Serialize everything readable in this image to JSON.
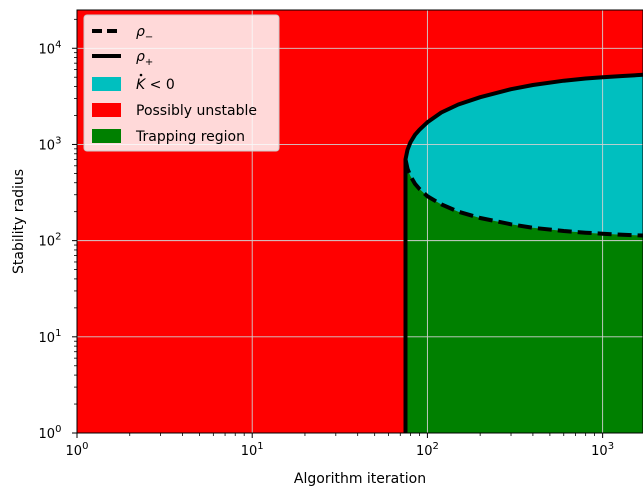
{
  "chart_data": {
    "type": "area",
    "xlabel": "Algorithm iteration",
    "ylabel": "Stability radius",
    "xscale": "log",
    "yscale": "log",
    "xlim": [
      1,
      1700
    ],
    "ylim": [
      1,
      25000
    ],
    "grid": true,
    "legend_position": "upper-left",
    "x_ticks": [
      {
        "value": 1,
        "base": "10",
        "exp": "0"
      },
      {
        "value": 10,
        "base": "10",
        "exp": "1"
      },
      {
        "value": 100,
        "base": "10",
        "exp": "2"
      },
      {
        "value": 1000,
        "base": "10",
        "exp": "3"
      }
    ],
    "y_ticks": [
      {
        "value": 1,
        "base": "10",
        "exp": "0"
      },
      {
        "value": 10,
        "base": "10",
        "exp": "1"
      },
      {
        "value": 100,
        "base": "10",
        "exp": "2"
      },
      {
        "value": 1000,
        "base": "10",
        "exp": "3"
      },
      {
        "value": 10000,
        "base": "10",
        "exp": "4"
      }
    ],
    "series": [
      {
        "name": "ρ−",
        "legend_base": "ρ",
        "legend_sub": "−",
        "style": "dashed",
        "color": "#000000",
        "x": [
          75,
          77,
          80,
          85,
          90,
          100,
          120,
          150,
          200,
          300,
          400,
          600,
          800,
          1000,
          1300,
          1700
        ],
        "y": [
          700,
          560,
          470,
          390,
          345,
          290,
          238,
          200,
          172,
          148,
          136,
          126,
          121,
          118,
          115,
          113
        ]
      },
      {
        "name": "ρ+",
        "legend_base": "ρ",
        "legend_sub": "+",
        "style": "solid",
        "color": "#000000",
        "x": [
          75,
          77,
          80,
          85,
          90,
          100,
          120,
          150,
          200,
          300,
          400,
          600,
          800,
          1000,
          1300,
          1700
        ],
        "y": [
          700,
          880,
          1050,
          1260,
          1420,
          1700,
          2150,
          2600,
          3100,
          3750,
          4150,
          4600,
          4850,
          5000,
          5150,
          5300
        ]
      }
    ],
    "regions": [
      {
        "name": "K̇ < 0",
        "legend_base": "K",
        "legend_rest": " < 0",
        "color": "#00bfbf",
        "between": [
          "ρ−",
          "ρ+"
        ]
      },
      {
        "name": "Possibly unstable",
        "color": "#ff0000"
      },
      {
        "name": "Trapping region",
        "color": "#008000",
        "below": "ρ−"
      }
    ],
    "threshold_x": 75
  }
}
